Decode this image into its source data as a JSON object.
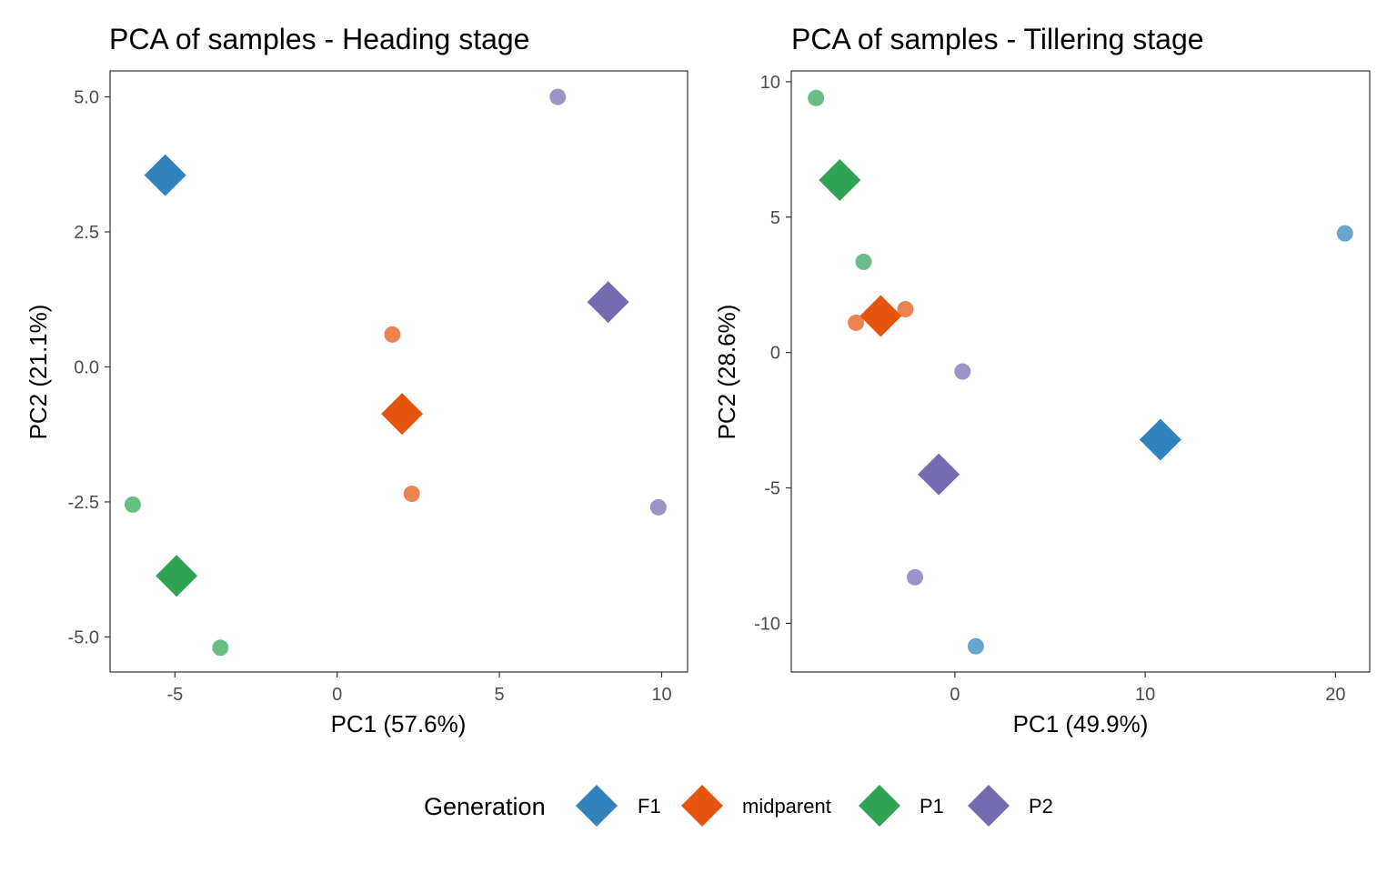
{
  "legend": {
    "title": "Generation",
    "position": "bottom",
    "items": [
      {
        "label": "F1",
        "color": "#3182bd"
      },
      {
        "label": "midparent",
        "color": "#e6550d"
      },
      {
        "label": "P1",
        "color": "#31a354"
      },
      {
        "label": "P2",
        "color": "#756bb1"
      }
    ]
  },
  "chart_data": [
    {
      "type": "scatter",
      "title": "PCA of samples - Heading stage",
      "xlabel": "PC1 (57.6%)",
      "ylabel": "PC2 (21.1%)",
      "xlim": [
        -7.0,
        10.8
      ],
      "ylim": [
        -5.65,
        5.48
      ],
      "xticks": [
        -5,
        0,
        5,
        10
      ],
      "xtick_labels": [
        "-5",
        "0",
        "5",
        "10"
      ],
      "yticks": [
        -5.0,
        -2.5,
        0.0,
        2.5,
        5.0
      ],
      "ytick_labels": [
        "-5.0",
        "-2.5",
        "0.0",
        "2.5",
        "5.0"
      ],
      "grid": false,
      "series": [
        {
          "name": "F1",
          "samples": [
            {
              "x": -5.35,
              "y": 3.65
            },
            {
              "x": -5.25,
              "y": 3.45
            }
          ],
          "centroid": {
            "x": -5.3,
            "y": 3.55
          }
        },
        {
          "name": "midparent",
          "samples": [
            {
              "x": 1.7,
              "y": 0.6
            },
            {
              "x": 2.3,
              "y": -2.35
            }
          ],
          "centroid": {
            "x": 2.0,
            "y": -0.87
          }
        },
        {
          "name": "P1",
          "samples": [
            {
              "x": -6.3,
              "y": -2.55
            },
            {
              "x": -3.6,
              "y": -5.2
            }
          ],
          "centroid": {
            "x": -4.95,
            "y": -3.87
          }
        },
        {
          "name": "P2",
          "samples": [
            {
              "x": 6.8,
              "y": 5.0
            },
            {
              "x": 9.9,
              "y": -2.6
            }
          ],
          "centroid": {
            "x": 8.35,
            "y": 1.2
          }
        }
      ]
    },
    {
      "type": "scatter",
      "title": "PCA of samples - Tillering stage",
      "xlabel": "PC1 (49.9%)",
      "ylabel": "PC2 (28.6%)",
      "xlim": [
        -8.6,
        21.8
      ],
      "ylim": [
        -11.8,
        10.4
      ],
      "xticks": [
        0,
        10,
        20
      ],
      "xtick_labels": [
        "0",
        "10",
        "20"
      ],
      "yticks": [
        -10,
        -5,
        0,
        5,
        10
      ],
      "ytick_labels": [
        "-10",
        "-5",
        "0",
        "5",
        "10"
      ],
      "grid": false,
      "series": [
        {
          "name": "F1",
          "samples": [
            {
              "x": 20.5,
              "y": 4.4
            },
            {
              "x": 1.1,
              "y": -10.85
            }
          ],
          "centroid": {
            "x": 10.8,
            "y": -3.22
          }
        },
        {
          "name": "midparent",
          "samples": [
            {
              "x": -5.2,
              "y": 1.1
            },
            {
              "x": -2.6,
              "y": 1.6
            }
          ],
          "centroid": {
            "x": -3.9,
            "y": 1.35
          }
        },
        {
          "name": "P1",
          "samples": [
            {
              "x": -7.3,
              "y": 9.4
            },
            {
              "x": -4.8,
              "y": 3.35
            }
          ],
          "centroid": {
            "x": -6.05,
            "y": 6.37
          }
        },
        {
          "name": "P2",
          "samples": [
            {
              "x": 0.4,
              "y": -0.7
            },
            {
              "x": -2.1,
              "y": -8.3
            }
          ],
          "centroid": {
            "x": -0.85,
            "y": -4.5
          }
        }
      ]
    }
  ]
}
